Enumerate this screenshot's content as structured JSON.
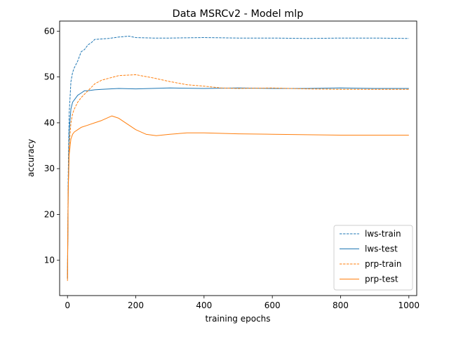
{
  "chart_data": {
    "type": "line",
    "title": "Data MSRCv2 - Model mlp",
    "xlabel": "training epochs",
    "ylabel": "accuracy",
    "xlim": [
      -23,
      1023
    ],
    "ylim": [
      2.3,
      62.2
    ],
    "xticks": [
      0,
      200,
      400,
      600,
      800,
      1000
    ],
    "yticks": [
      10,
      20,
      30,
      40,
      50,
      60
    ],
    "grid": false,
    "legend_position": "lower-right",
    "colors": {
      "lws": "#1f77b4",
      "prp": "#ff7f0e"
    },
    "series": [
      {
        "name": "lws-train",
        "color": "#1f77b4",
        "dashed": true,
        "x": [
          0,
          2,
          5,
          10,
          15,
          20,
          30,
          40,
          50,
          60,
          70,
          80,
          100,
          120,
          150,
          180,
          200,
          250,
          300,
          400,
          500,
          600,
          700,
          800,
          900,
          1000
        ],
        "y": [
          6,
          28,
          42,
          49,
          51,
          52,
          53.5,
          55.5,
          56,
          57,
          57.5,
          58.2,
          58.3,
          58.4,
          58.7,
          58.9,
          58.6,
          58.5,
          58.5,
          58.6,
          58.5,
          58.5,
          58.4,
          58.5,
          58.5,
          58.4
        ]
      },
      {
        "name": "lws-test",
        "color": "#1f77b4",
        "dashed": false,
        "x": [
          0,
          2,
          5,
          10,
          15,
          20,
          30,
          40,
          50,
          60,
          80,
          100,
          150,
          200,
          300,
          400,
          500,
          600,
          700,
          800,
          900,
          1000
        ],
        "y": [
          6,
          25,
          38,
          43,
          44.5,
          45,
          46,
          46.5,
          47,
          47,
          47.2,
          47.3,
          47.5,
          47.4,
          47.6,
          47.5,
          47.6,
          47.5,
          47.5,
          47.6,
          47.5,
          47.5
        ]
      },
      {
        "name": "prp-train",
        "color": "#ff7f0e",
        "dashed": true,
        "x": [
          0,
          2,
          5,
          10,
          15,
          20,
          30,
          40,
          60,
          80,
          100,
          150,
          200,
          250,
          300,
          350,
          400,
          450,
          500,
          600,
          700,
          800,
          900,
          1000
        ],
        "y": [
          5.5,
          25,
          35,
          40,
          42,
          43,
          44.5,
          45.5,
          47,
          48.5,
          49.3,
          50.3,
          50.5,
          49.8,
          49,
          48.3,
          48,
          47.6,
          47.5,
          47.6,
          47.4,
          47.3,
          47.3,
          47.3
        ]
      },
      {
        "name": "prp-test",
        "color": "#ff7f0e",
        "dashed": false,
        "x": [
          0,
          2,
          5,
          10,
          15,
          20,
          30,
          40,
          60,
          80,
          100,
          130,
          150,
          170,
          200,
          230,
          260,
          300,
          350,
          400,
          500,
          600,
          700,
          800,
          900,
          1000
        ],
        "y": [
          6,
          25,
          33,
          36.5,
          37.5,
          38,
          38.5,
          39,
          39.5,
          40,
          40.5,
          41.5,
          41,
          40,
          38.5,
          37.5,
          37.2,
          37.5,
          37.8,
          37.8,
          37.6,
          37.5,
          37.4,
          37.3,
          37.3,
          37.3
        ]
      }
    ]
  }
}
